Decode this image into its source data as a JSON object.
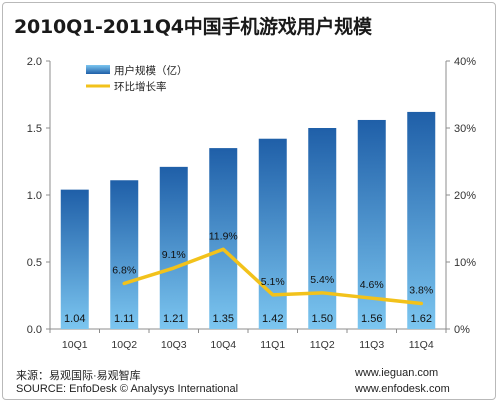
{
  "title": "2010Q1-2011Q4中国手机游戏用户规模",
  "chart_data": {
    "type": "bar",
    "categories": [
      "10Q1",
      "10Q2",
      "10Q3",
      "10Q4",
      "11Q1",
      "11Q2",
      "11Q3",
      "11Q4"
    ],
    "series": [
      {
        "name": "用户规模（亿）",
        "type": "bar",
        "axis": "left",
        "values": [
          1.04,
          1.11,
          1.21,
          1.35,
          1.42,
          1.5,
          1.56,
          1.62
        ],
        "labels": [
          "1.04",
          "1.11",
          "1.21",
          "1.35",
          "1.42",
          "1.50",
          "1.56",
          "1.62"
        ]
      },
      {
        "name": "环比增长率",
        "type": "line",
        "axis": "right",
        "values": [
          null,
          6.8,
          9.1,
          11.9,
          5.1,
          5.4,
          4.6,
          3.8
        ],
        "labels": [
          "",
          "6.8%",
          "9.1%",
          "11.9%",
          "5.1%",
          "5.4%",
          "4.6%",
          "3.8%"
        ]
      }
    ],
    "ylim_left": [
      0,
      2.0
    ],
    "yticks_left": [
      "0.0",
      "0.5",
      "1.0",
      "1.5",
      "2.0"
    ],
    "ylim_right": [
      0,
      40
    ],
    "yticks_right": [
      "0%",
      "10%",
      "20%",
      "30%",
      "40%"
    ],
    "grid": false,
    "legend": "top-left",
    "colors": {
      "bar_top": "#1f5fa8",
      "bar_bottom": "#7cc6f0",
      "line": "#f2c21b"
    }
  },
  "footer": {
    "source_cn": "来源：易观国际·易观智库",
    "source_en": "SOURCE: EnfoDesk © Analysys International",
    "url1": "www.ieguan.com",
    "url2": "www.enfodesk.com"
  }
}
